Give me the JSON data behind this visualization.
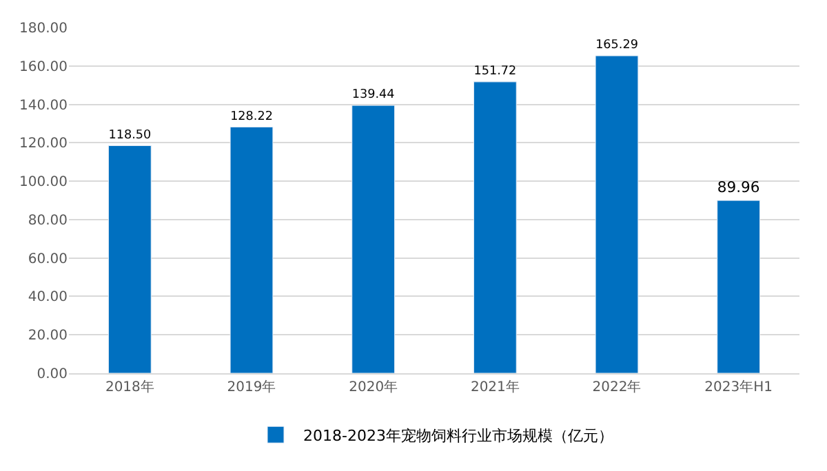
{
  "chart_data": {
    "type": "bar",
    "categories": [
      "2018年",
      "2019年",
      "2020年",
      "2021年",
      "2022年",
      "2023年H1"
    ],
    "series": [
      {
        "name": "2018-2023年宠物饲料行业市场规模（亿元）",
        "color": "#0070c0",
        "values": [
          118.5,
          128.22,
          139.44,
          151.72,
          165.29,
          89.96
        ],
        "value_labels": [
          "118.50",
          "128.22",
          "139.44",
          "151.72",
          "165.29",
          "89.96"
        ]
      }
    ],
    "ylim": [
      0,
      180
    ],
    "yticks": [
      {
        "value": 0,
        "label": "0.00"
      },
      {
        "value": 20,
        "label": "20.00"
      },
      {
        "value": 40,
        "label": "40.00"
      },
      {
        "value": 60,
        "label": "60.00"
      },
      {
        "value": 80,
        "label": "80.00"
      },
      {
        "value": 100,
        "label": "100.00"
      },
      {
        "value": 120,
        "label": "120.00"
      },
      {
        "value": 140,
        "label": "140.00"
      },
      {
        "value": 160,
        "label": "160.00"
      },
      {
        "value": 180,
        "label": "180.00"
      }
    ],
    "grid": "y",
    "legend": "bottom"
  }
}
